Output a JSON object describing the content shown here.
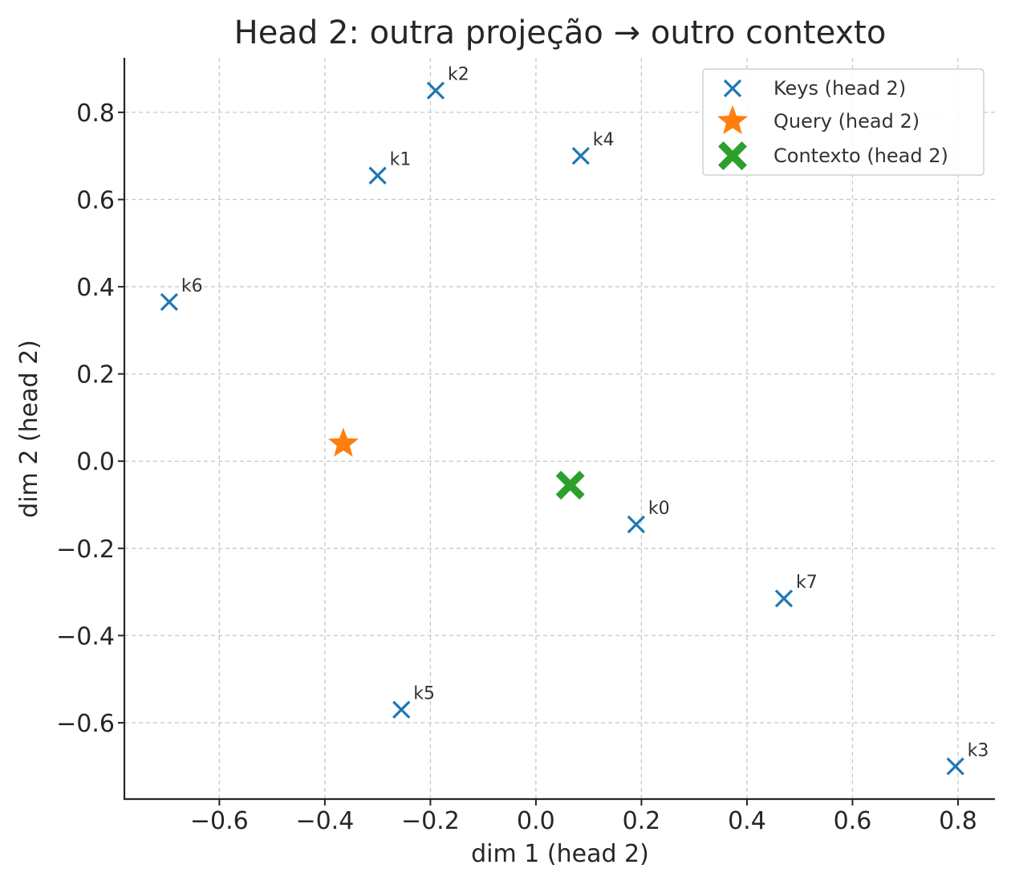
{
  "chart_data": {
    "type": "scatter",
    "title": "Head 2: outra projeção → outro contexto",
    "xlabel": "dim 1 (head 2)",
    "ylabel": "dim 2 (head 2)",
    "xlim": [
      -0.78,
      0.87
    ],
    "ylim": [
      -0.775,
      0.925
    ],
    "xticks": [
      -0.6,
      -0.4,
      -0.2,
      0.0,
      0.2,
      0.4,
      0.6,
      0.8
    ],
    "xtick_labels": [
      "−0.6",
      "−0.4",
      "−0.2",
      "0.0",
      "0.2",
      "0.4",
      "0.6",
      "0.8"
    ],
    "yticks": [
      -0.6,
      -0.4,
      -0.2,
      0.0,
      0.2,
      0.4,
      0.6,
      0.8
    ],
    "ytick_labels": [
      "−0.6",
      "−0.4",
      "−0.2",
      "0.0",
      "0.2",
      "0.4",
      "0.6",
      "0.8"
    ],
    "grid": true,
    "legend_position": "top-right",
    "series": [
      {
        "name": "Keys (head 2)",
        "marker": "x",
        "color": "#1f77b4",
        "points": [
          {
            "label": "k0",
            "x": 0.19,
            "y": -0.145
          },
          {
            "label": "k1",
            "x": -0.3,
            "y": 0.655
          },
          {
            "label": "k2",
            "x": -0.19,
            "y": 0.85
          },
          {
            "label": "k3",
            "x": 0.795,
            "y": -0.7
          },
          {
            "label": "k4",
            "x": 0.085,
            "y": 0.7
          },
          {
            "label": "k5",
            "x": -0.255,
            "y": -0.57
          },
          {
            "label": "k6",
            "x": -0.695,
            "y": 0.365
          },
          {
            "label": "k7",
            "x": 0.47,
            "y": -0.315
          }
        ]
      },
      {
        "name": "Query (head 2)",
        "marker": "star",
        "color": "#ff7f0e",
        "points": [
          {
            "x": -0.365,
            "y": 0.04
          }
        ]
      },
      {
        "name": "Contexto (head 2)",
        "marker": "bold-x",
        "color": "#2ca02c",
        "points": [
          {
            "x": 0.065,
            "y": -0.055
          }
        ]
      }
    ]
  }
}
